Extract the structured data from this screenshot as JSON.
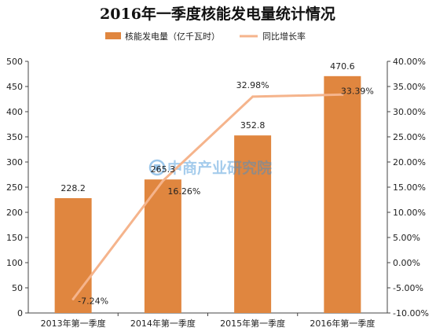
{
  "chart_data": {
    "type": "bar",
    "title": "2016年一季度核能发电量统计情况",
    "categories": [
      "2013年第一季度",
      "2014年第一季度",
      "2015年第一季度",
      "2016年第一季度"
    ],
    "series": [
      {
        "name": "核能发电量（亿千瓦时）",
        "type": "bar",
        "axis": "left",
        "color": "#e0863f",
        "values": [
          228.2,
          265.3,
          352.8,
          470.6
        ],
        "labels": [
          "228.2",
          "265.3",
          "352.8",
          "470.6"
        ]
      },
      {
        "name": "同比增长率",
        "type": "line",
        "axis": "right",
        "color": "#f5b48c",
        "values": [
          -7.24,
          16.26,
          32.98,
          33.39
        ],
        "labels": [
          "-7.24%",
          "16.26%",
          "32.98%",
          "33.39%"
        ]
      }
    ],
    "y_left": {
      "min": 0,
      "max": 500,
      "step": 50,
      "ticks": [
        "0",
        "50",
        "100",
        "150",
        "200",
        "250",
        "300",
        "350",
        "400",
        "450",
        "500"
      ]
    },
    "y_right": {
      "min": -10,
      "max": 40,
      "step": 5,
      "ticks": [
        "-10.00%",
        "-5.00%",
        "0.00%",
        "5.00%",
        "10.00%",
        "15.00%",
        "20.00%",
        "25.00%",
        "30.00%",
        "35.00%",
        "40.00%"
      ]
    },
    "legend_position": "top",
    "grid": false
  },
  "watermark": {
    "text": "中商产业研究院",
    "icon": "zhongshang-logo-icon"
  }
}
